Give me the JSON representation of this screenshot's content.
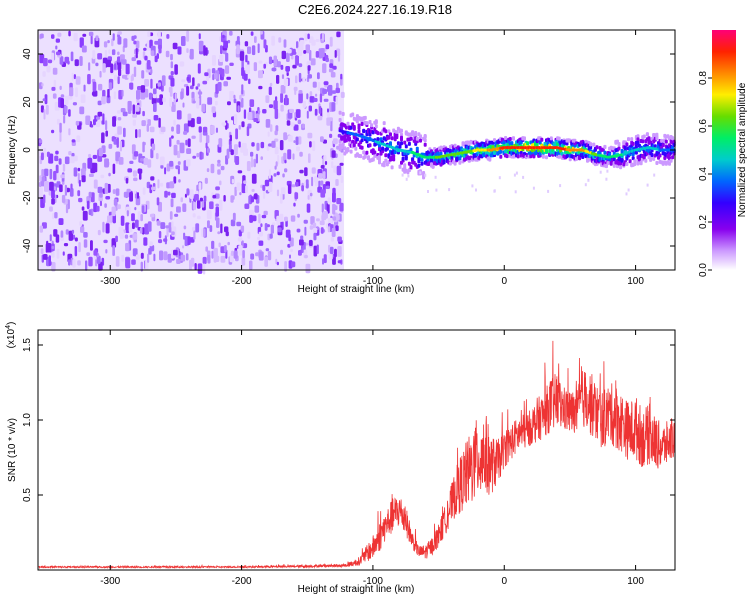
{
  "title": "C2E6.2024.227.16.19.R18",
  "chart_data": [
    {
      "type": "heatmap",
      "xlabel": "Height of straight line (km)",
      "ylabel": "Frequency (Hz)",
      "xlim": [
        -355,
        130
      ],
      "ylim": [
        -50,
        50
      ],
      "xticks": [
        -300,
        -200,
        -100,
        0,
        100
      ],
      "xtick_labels": [
        "-300",
        "-200",
        "-100",
        "0",
        "100"
      ],
      "yticks": [
        -40,
        -20,
        0,
        20,
        40
      ],
      "ytick_labels": [
        "-40",
        "-20",
        "0",
        "20",
        "40"
      ],
      "noise_region_x": [
        -355,
        -122
      ],
      "ridge": {
        "x": [
          -125,
          -110,
          -100,
          -90,
          -80,
          -70,
          -60,
          -50,
          -40,
          -30,
          -20,
          -10,
          0,
          10,
          20,
          30,
          40,
          50,
          60,
          70,
          80,
          90,
          100,
          110,
          120,
          130
        ],
        "y": [
          8,
          6,
          4,
          2,
          0,
          -1,
          -3,
          -3,
          -2,
          -1,
          0,
          0,
          1,
          1,
          1,
          1,
          1,
          0,
          0,
          -2,
          -3,
          -2,
          0,
          1,
          0,
          0
        ],
        "peak_amplitude": [
          0.3,
          0.35,
          0.4,
          0.45,
          0.45,
          0.5,
          0.55,
          0.6,
          0.6,
          0.65,
          0.7,
          0.8,
          0.9,
          0.95,
          0.95,
          0.95,
          0.9,
          0.85,
          0.8,
          0.6,
          0.5,
          0.5,
          0.45,
          0.45,
          0.4,
          0.4
        ]
      },
      "colorbar": {
        "label": "Normalized spectral amplitude",
        "range": [
          0,
          1
        ],
        "ticks": [
          0.0,
          0.2,
          0.4,
          0.6,
          0.8
        ],
        "tick_labels": [
          "0.0",
          "0.2",
          "0.4",
          "0.6",
          "0.8"
        ],
        "colors": [
          "#ffffff",
          "#cc99ff",
          "#8800ee",
          "#3300ff",
          "#0066ff",
          "#00cccc",
          "#00ee66",
          "#66dd00",
          "#ffee00",
          "#ff8800",
          "#ff2200",
          "#ff0077"
        ]
      }
    },
    {
      "type": "line",
      "xlabel": "Height of straight line (km)",
      "ylabel": "SNR (10 * v/v)",
      "y_multiplier": "(x10",
      "y_multiplier_exp": "4",
      "y_multiplier_close": ")",
      "xlim": [
        -355,
        130
      ],
      "ylim": [
        0,
        1.6
      ],
      "xticks": [
        -300,
        -200,
        -100,
        0,
        100
      ],
      "xtick_labels": [
        "-300",
        "-200",
        "-100",
        "0",
        "100"
      ],
      "yticks": [
        0.5,
        1.0,
        1.5
      ],
      "ytick_labels": [
        "0.5",
        "1.0",
        "1.5"
      ],
      "color": "#ee3333",
      "series": [
        {
          "name": "SNR",
          "x": [
            -355,
            -300,
            -250,
            -200,
            -150,
            -120,
            -110,
            -100,
            -95,
            -90,
            -85,
            -80,
            -75,
            -70,
            -65,
            -60,
            -55,
            -50,
            -45,
            -40,
            -35,
            -30,
            -25,
            -20,
            -15,
            -10,
            -5,
            0,
            5,
            10,
            15,
            20,
            25,
            30,
            35,
            40,
            45,
            50,
            55,
            60,
            65,
            70,
            75,
            80,
            85,
            90,
            95,
            100,
            105,
            110,
            115,
            120,
            125,
            130
          ],
          "values": [
            0.02,
            0.02,
            0.02,
            0.02,
            0.025,
            0.03,
            0.06,
            0.15,
            0.22,
            0.3,
            0.36,
            0.4,
            0.33,
            0.2,
            0.12,
            0.12,
            0.16,
            0.23,
            0.33,
            0.45,
            0.55,
            0.62,
            0.68,
            0.75,
            0.78,
            0.7,
            0.72,
            0.8,
            0.85,
            0.9,
            0.92,
            0.95,
            1.0,
            1.03,
            1.1,
            1.12,
            1.08,
            1.05,
            1.05,
            1.15,
            1.12,
            1.05,
            1.0,
            1.05,
            1.02,
            0.98,
            0.92,
            0.95,
            0.88,
            0.9,
            0.85,
            0.82,
            0.85,
            0.88
          ],
          "noise_amplitude": [
            0.005,
            0.005,
            0.005,
            0.005,
            0.008,
            0.01,
            0.03,
            0.08,
            0.1,
            0.1,
            0.12,
            0.12,
            0.1,
            0.06,
            0.04,
            0.05,
            0.06,
            0.08,
            0.1,
            0.13,
            0.18,
            0.22,
            0.25,
            0.28,
            0.3,
            0.2,
            0.15,
            0.12,
            0.12,
            0.12,
            0.12,
            0.12,
            0.15,
            0.15,
            0.18,
            0.2,
            0.15,
            0.15,
            0.15,
            0.2,
            0.22,
            0.2,
            0.2,
            0.2,
            0.22,
            0.2,
            0.2,
            0.22,
            0.2,
            0.2,
            0.18,
            0.15,
            0.15,
            0.12
          ]
        }
      ]
    }
  ]
}
